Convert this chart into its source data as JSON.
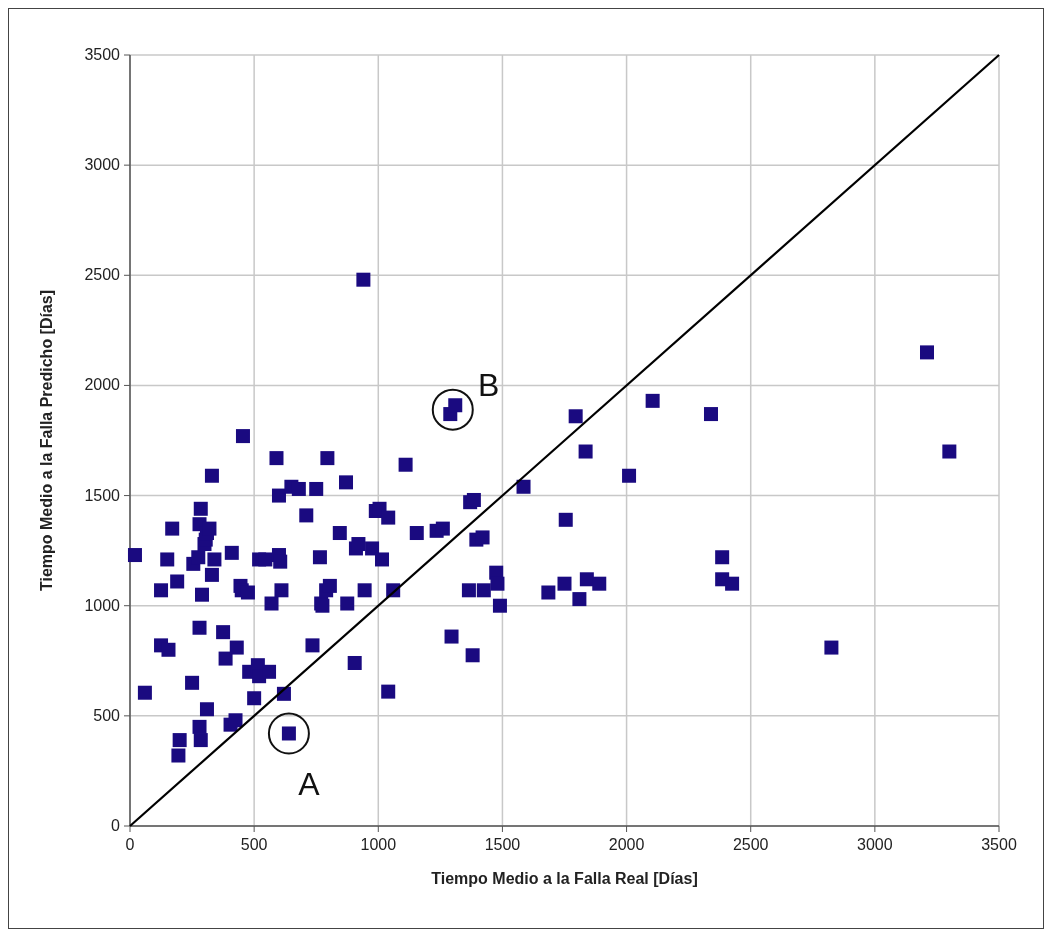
{
  "chart_data": {
    "type": "scatter",
    "xlabel": "Tiempo Medio a la Falla Real [Días]",
    "ylabel": "Tiempo Medio a la Falla Predicho [Días]",
    "xlim": [
      0,
      3500
    ],
    "ylim": [
      0,
      3500
    ],
    "xticks": [
      0,
      500,
      1000,
      1500,
      2000,
      2500,
      3000,
      3500
    ],
    "yticks": [
      0,
      500,
      1000,
      1500,
      2000,
      2500,
      3000,
      3500
    ],
    "grid": true,
    "marker": "square",
    "series": [
      {
        "color": "#1a0a80",
        "x": [
          20,
          60,
          125,
          125,
          155,
          150,
          170,
          190,
          195,
          200,
          250,
          255,
          275,
          280,
          280,
          280,
          285,
          285,
          290,
          300,
          305,
          310,
          320,
          310,
          330,
          330,
          340,
          375,
          385,
          405,
          410,
          425,
          430,
          445,
          450,
          455,
          475,
          480,
          500,
          515,
          520,
          520,
          545,
          560,
          570,
          590,
          600,
          600,
          605,
          610,
          620,
          640,
          650,
          680,
          710,
          735,
          750,
          765,
          770,
          775,
          790,
          795,
          805,
          845,
          870,
          875,
          905,
          910,
          920,
          940,
          945,
          975,
          990,
          1005,
          1015,
          1040,
          1040,
          1060,
          1110,
          1155,
          1235,
          1260,
          1290,
          1310,
          1295,
          1370,
          1385,
          1365,
          1380,
          1395,
          1420,
          1425,
          1475,
          1480,
          1490,
          1585,
          1685,
          1750,
          1755,
          1795,
          1810,
          1835,
          1840,
          1890,
          2010,
          2105,
          2340,
          2385,
          2385,
          2425,
          2825,
          3210,
          3300
        ],
        "values": [
          1230,
          605,
          1070,
          820,
          800,
          1210,
          1350,
          1110,
          320,
          390,
          650,
          1190,
          1220,
          1370,
          450,
          900,
          1440,
          390,
          1050,
          1280,
          1300,
          1330,
          1350,
          530,
          1590,
          1140,
          1210,
          880,
          760,
          460,
          1240,
          480,
          810,
          1090,
          1070,
          1770,
          1060,
          700,
          580,
          730,
          1210,
          680,
          1210,
          700,
          1010,
          1670,
          1500,
          1230,
          1200,
          1070,
          600,
          420,
          1540,
          1530,
          1410,
          820,
          1530,
          1220,
          1010,
          1000,
          1070,
          1670,
          1090,
          1330,
          1560,
          1010,
          740,
          1260,
          1280,
          2480,
          1070,
          1260,
          1430,
          1440,
          1210,
          1400,
          610,
          1070,
          1640,
          1330,
          1340,
          1350,
          1870,
          1910,
          860,
          1470,
          1480,
          1070,
          775,
          1300,
          1310,
          1070,
          1150,
          1100,
          1000,
          1540,
          1060,
          1100,
          1390,
          1860,
          1030,
          1700,
          1120,
          1100,
          1590,
          1930,
          1870,
          1220,
          1120,
          1100,
          810,
          2150,
          1700
        ]
      },
      {
        "type": "line",
        "marker": "none",
        "color": "#000000",
        "x": [
          0,
          3500
        ],
        "values": [
          0,
          3500
        ]
      }
    ],
    "annotations": [
      {
        "text": "A",
        "x": 640,
        "y": 420
      },
      {
        "text": "B",
        "x": 1300,
        "y": 1890
      }
    ]
  }
}
